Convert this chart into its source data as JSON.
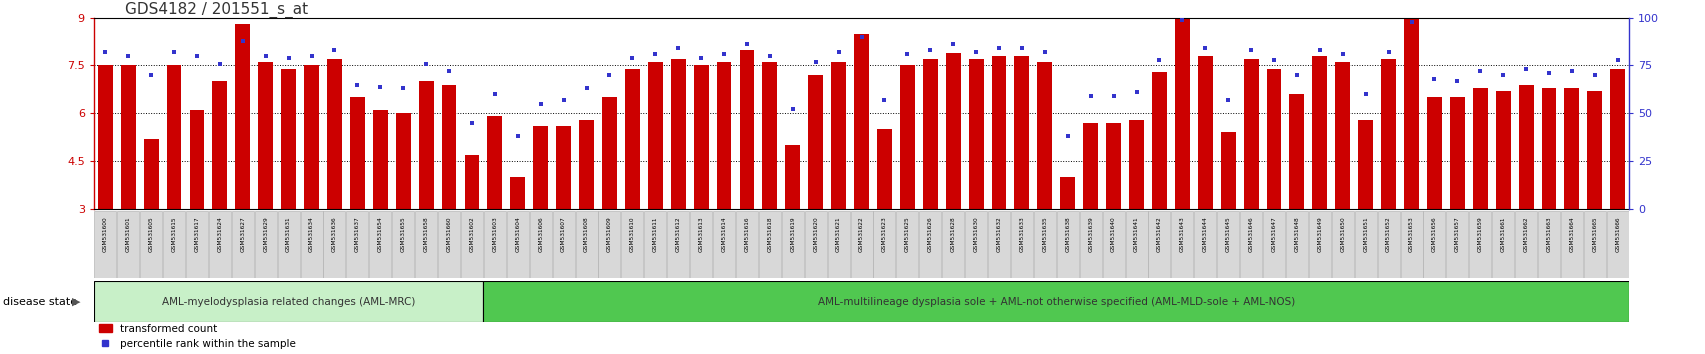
{
  "title": "GDS4182 / 201551_s_at",
  "samples": [
    "GSM531600",
    "GSM531601",
    "GSM531605",
    "GSM531615",
    "GSM531617",
    "GSM531624",
    "GSM531627",
    "GSM531629",
    "GSM531631",
    "GSM531634",
    "GSM531636",
    "GSM531637",
    "GSM531654",
    "GSM531655",
    "GSM531658",
    "GSM531660",
    "GSM531602",
    "GSM531603",
    "GSM531604",
    "GSM531606",
    "GSM531607",
    "GSM531608",
    "GSM531609",
    "GSM531610",
    "GSM531611",
    "GSM531612",
    "GSM531613",
    "GSM531614",
    "GSM531616",
    "GSM531618",
    "GSM531619",
    "GSM531620",
    "GSM531621",
    "GSM531622",
    "GSM531623",
    "GSM531625",
    "GSM531626",
    "GSM531628",
    "GSM531630",
    "GSM531632",
    "GSM531633",
    "GSM531635",
    "GSM531638",
    "GSM531639",
    "GSM531640",
    "GSM531641",
    "GSM531642",
    "GSM531643",
    "GSM531644",
    "GSM531645",
    "GSM531646",
    "GSM531647",
    "GSM531648",
    "GSM531649",
    "GSM531650",
    "GSM531651",
    "GSM531652",
    "GSM531653",
    "GSM531656",
    "GSM531657",
    "GSM531659",
    "GSM531661",
    "GSM531662",
    "GSM531663",
    "GSM531664",
    "GSM531665",
    "GSM531666"
  ],
  "bar_values": [
    7.5,
    7.5,
    5.2,
    7.5,
    6.1,
    7.0,
    8.8,
    7.6,
    7.4,
    7.5,
    7.7,
    6.5,
    6.1,
    6.0,
    7.0,
    6.9,
    4.7,
    5.9,
    4.0,
    5.6,
    5.6,
    5.8,
    6.5,
    7.4,
    7.6,
    7.7,
    7.5,
    7.6,
    8.0,
    7.6,
    5.0,
    7.2,
    7.6,
    8.5,
    5.5,
    7.5,
    7.7,
    7.9,
    7.7,
    7.8,
    7.8,
    7.6,
    4.0,
    5.7,
    5.7,
    5.8,
    7.3,
    9.0,
    7.8,
    5.4,
    7.7,
    7.4,
    6.6,
    7.8,
    7.6,
    5.8,
    7.7,
    9.0,
    6.5,
    6.5,
    6.8,
    6.7,
    6.9,
    6.8,
    6.8,
    6.7,
    7.4
  ],
  "dot_values": [
    82,
    80,
    70,
    82,
    80,
    76,
    88,
    80,
    79,
    80,
    83,
    65,
    64,
    63,
    76,
    72,
    45,
    60,
    38,
    55,
    57,
    63,
    70,
    79,
    81,
    84,
    79,
    81,
    86,
    80,
    52,
    77,
    82,
    90,
    57,
    81,
    83,
    86,
    82,
    84,
    84,
    82,
    38,
    59,
    59,
    61,
    78,
    99,
    84,
    57,
    83,
    78,
    70,
    83,
    81,
    60,
    82,
    98,
    68,
    67,
    72,
    70,
    73,
    71,
    72,
    70,
    78
  ],
  "disease_state_groups": [
    {
      "label": "AML-myelodysplasia related changes (AML-MRC)",
      "count": 17,
      "color": "#c8f0c8"
    },
    {
      "label": "AML-multilineage dysplasia sole + AML-not otherwise specified (AML-MLD-sole + AML-NOS)",
      "count": 50,
      "color": "#50c850"
    }
  ],
  "ylim_left": [
    3,
    9
  ],
  "ylim_right": [
    0,
    100
  ],
  "yticks_left": [
    3,
    4.5,
    6,
    7.5,
    9
  ],
  "yticks_right": [
    0,
    25,
    50,
    75,
    100
  ],
  "bar_color": "#cc0000",
  "dot_color": "#3333cc",
  "title_color": "#333333",
  "left_tick_color": "#cc0000",
  "right_tick_color": "#3333cc",
  "grid_color": "#000000",
  "background_color": "#ffffff",
  "xticklabel_bg": "#d8d8d8",
  "disease_state_label": "disease state",
  "legend_bar_label": "transformed count",
  "legend_dot_label": "percentile rank within the sample",
  "figsize": [
    17.06,
    3.54
  ],
  "dpi": 100
}
